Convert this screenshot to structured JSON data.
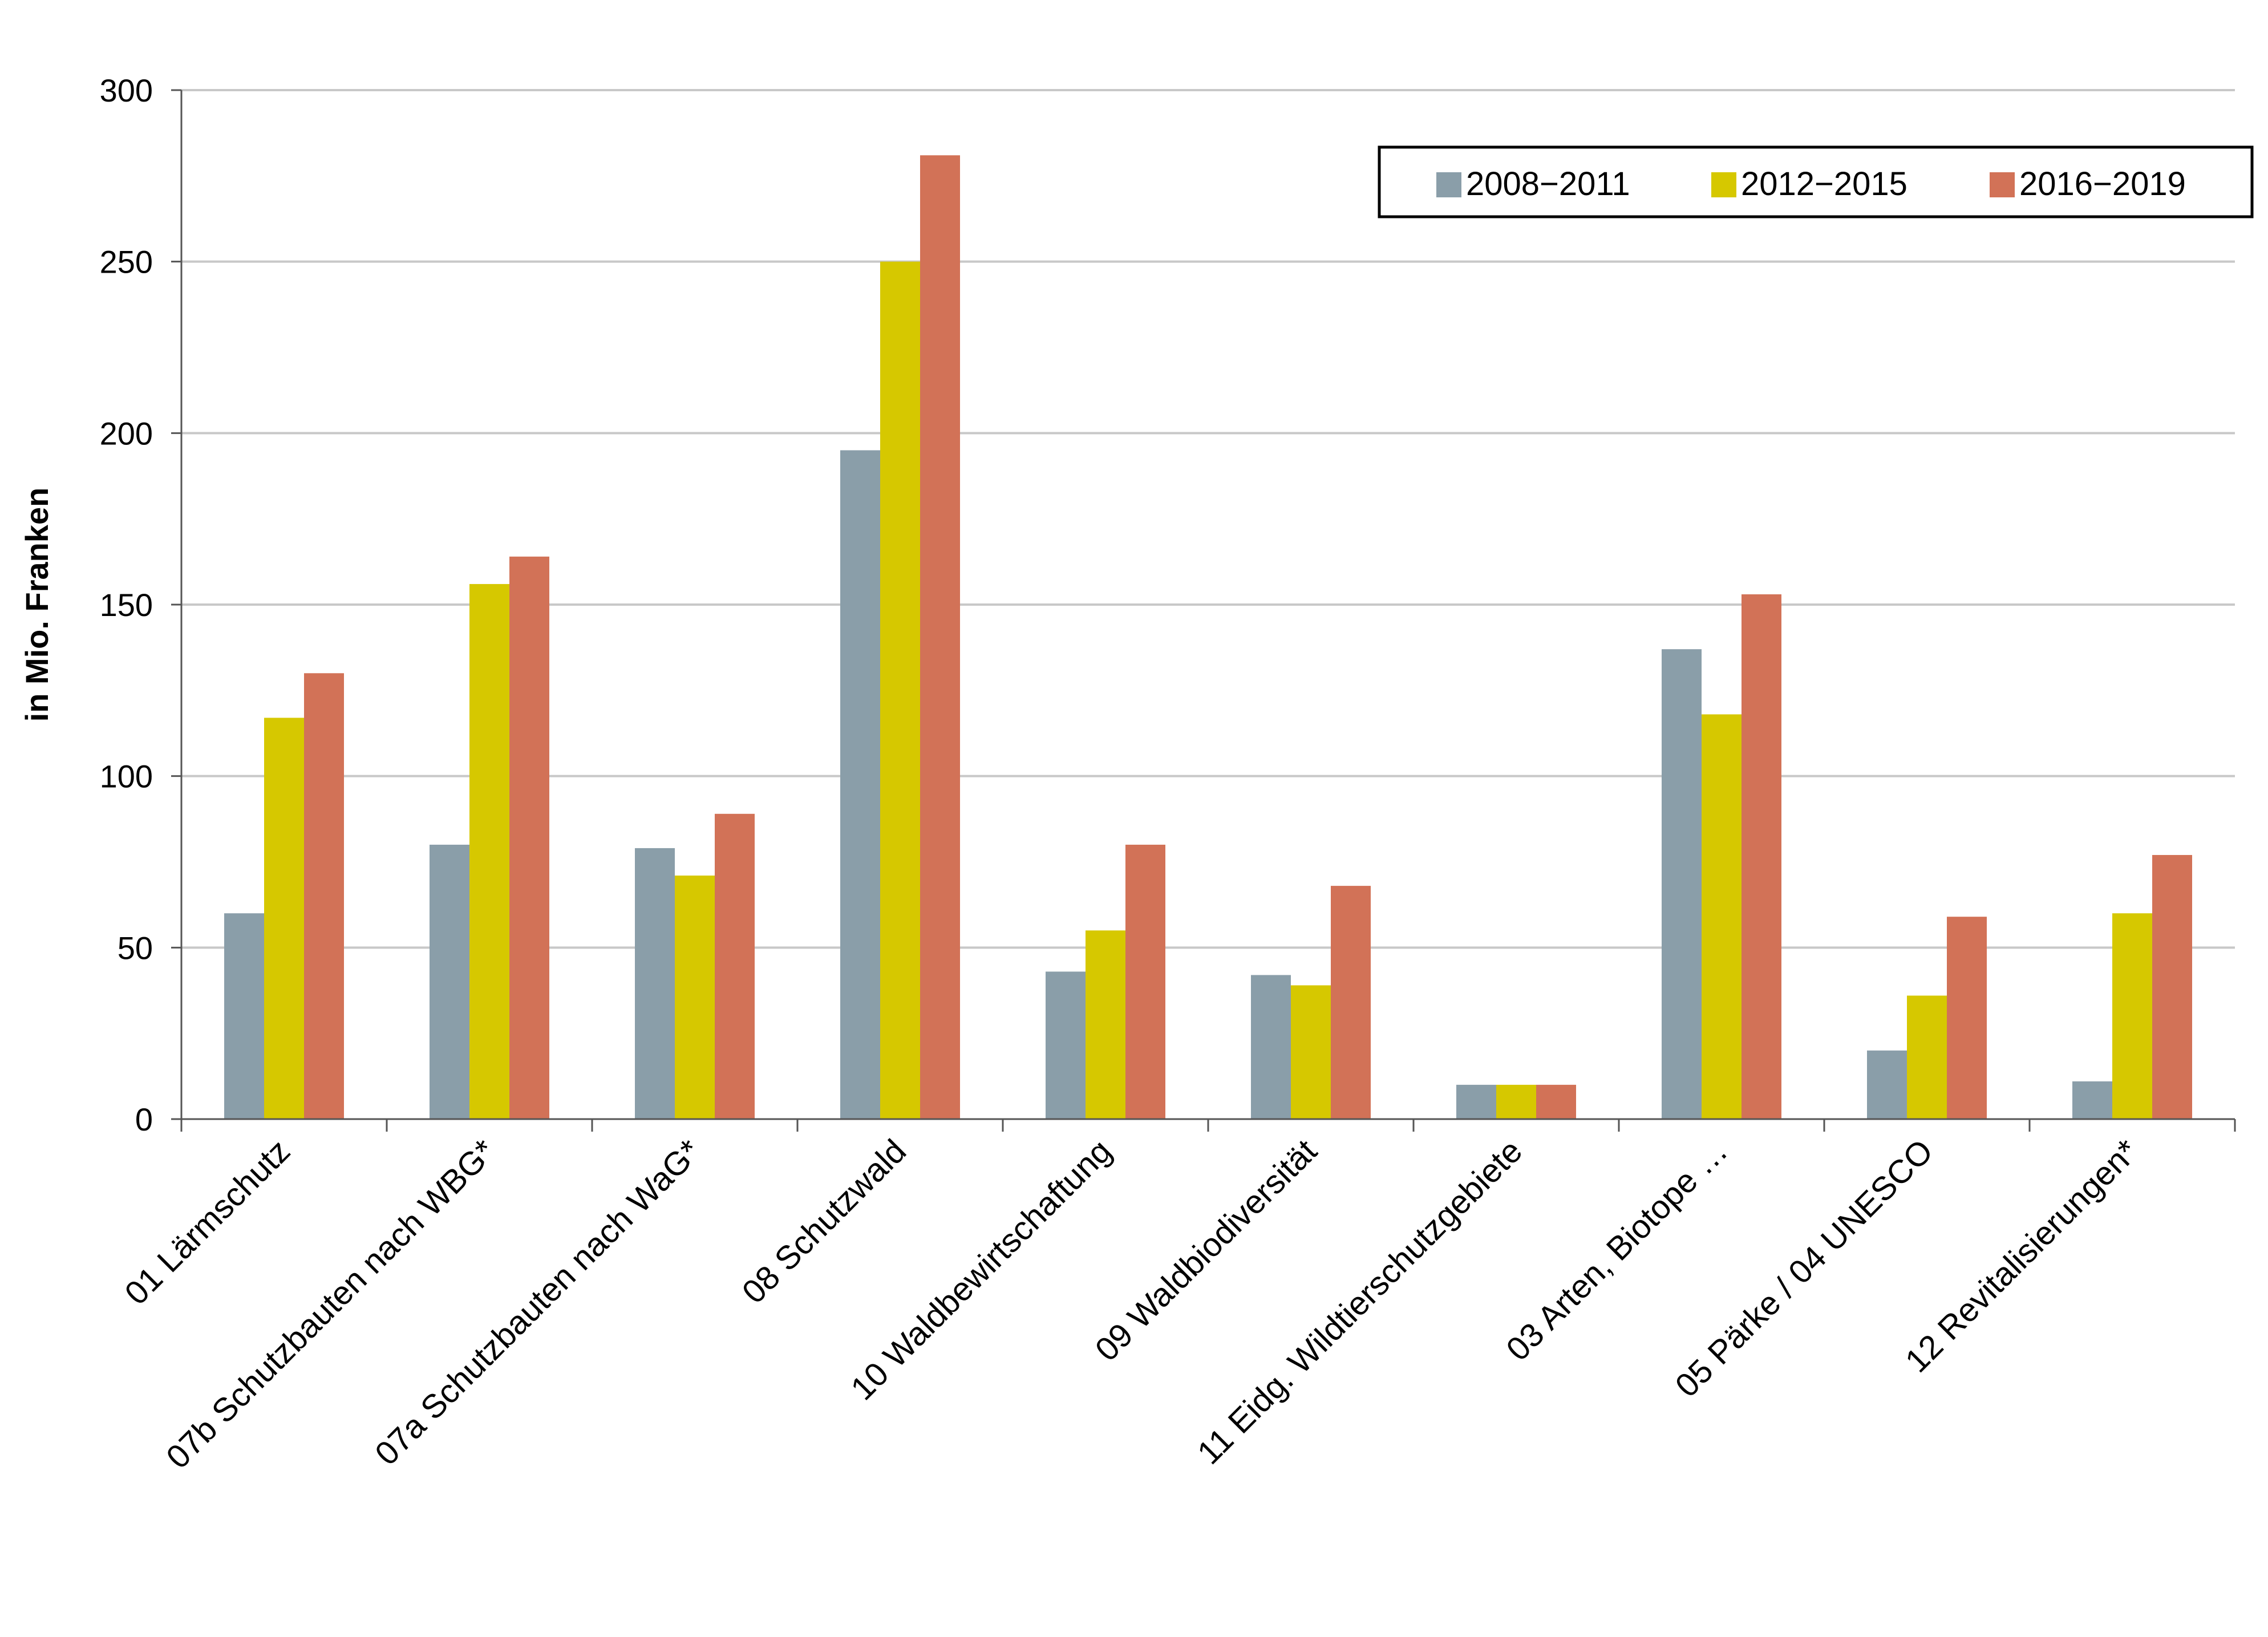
{
  "chart_data": {
    "type": "bar",
    "title": "",
    "xlabel": "",
    "ylabel": "in Mio. Franken",
    "ylim": [
      0,
      300
    ],
    "yticks": [
      0,
      50,
      100,
      150,
      200,
      250,
      300
    ],
    "grid": true,
    "legend_position": "top-right",
    "categories": [
      "01 Lärmschutz",
      "07b Schutzbauten nach WBG*",
      "07a Schutzbauten nach WaG*",
      "08 Schutzwald",
      "10 Waldbewirtschaftung",
      "09 Waldbiodiversität",
      "11 Eidg. Wildtierschutzgebiete",
      "03 Arten, Biotope …",
      "05 Pärke / 04 UNESCO",
      "12 Revitalisierungen*"
    ],
    "series": [
      {
        "name": "2008−2011",
        "color": "#8a9ea9",
        "values": [
          60,
          80,
          79,
          195,
          43,
          42,
          10,
          137,
          20,
          11
        ]
      },
      {
        "name": "2012−2015",
        "color": "#d6c800",
        "values": [
          117,
          156,
          71,
          250,
          55,
          39,
          10,
          118,
          36,
          60
        ]
      },
      {
        "name": "2016−2019",
        "color": "#d27257",
        "values": [
          130,
          164,
          89,
          281,
          80,
          68,
          10,
          153,
          59,
          77
        ]
      }
    ]
  }
}
